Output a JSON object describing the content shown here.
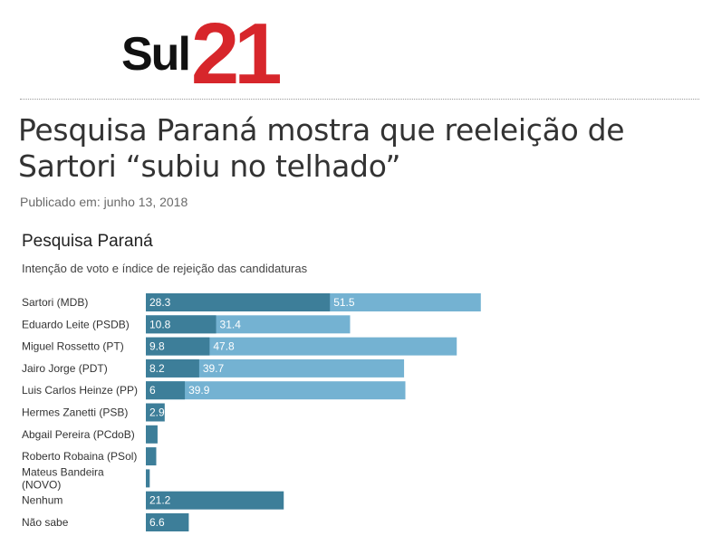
{
  "brand": {
    "logo_word": "Sul",
    "logo_number": "21",
    "logo_word_color": "#111111",
    "logo_number_color": "#d7262b"
  },
  "article": {
    "title": "Pesquisa Paraná mostra que reeleição de Sartori “subiu no telhado”",
    "published": "Publicado em: junho 13, 2018"
  },
  "chart_data": {
    "type": "bar",
    "orientation": "horizontal",
    "title": "Pesquisa Paraná",
    "subtitle": "Intenção de voto e índice de rejeição das candidaturas",
    "categories": [
      "Sartori (MDB)",
      "Eduardo Leite (PSDB)",
      "Miguel Rossetto (PT)",
      "Jairo Jorge (PDT)",
      "Luis Carlos Heinze (PP)",
      "Hermes Zanetti (PSB)",
      "Abgail Pereira (PCdoB)",
      "Roberto Robaina (PSol)",
      "Mateus Bandeira (NOVO)",
      "Nenhum",
      "Não sabe"
    ],
    "series": [
      {
        "color": "#3d7e99",
        "values": [
          28.3,
          10.8,
          9.8,
          8.2,
          6,
          2.9,
          1.8,
          1.6,
          0.6,
          21.2,
          6.6
        ]
      },
      {
        "color": "#74b2d2",
        "values": [
          51.5,
          31.4,
          47.8,
          39.7,
          39.9,
          null,
          null,
          null,
          null,
          null,
          null
        ]
      }
    ],
    "value_labels": [
      [
        "28.3",
        "51.5"
      ],
      [
        "10.8",
        "31.4"
      ],
      [
        "9.8",
        "47.8"
      ],
      [
        "8.2",
        "39.7"
      ],
      [
        "6",
        "39.9"
      ],
      [
        "2.9",
        ""
      ],
      [
        "",
        ""
      ],
      [
        "",
        ""
      ],
      [
        "",
        ""
      ],
      [
        "21.2",
        ""
      ],
      [
        "6.6",
        ""
      ]
    ],
    "grid": false,
    "legend": "none",
    "xlim": [
      0,
      79.8
    ]
  }
}
